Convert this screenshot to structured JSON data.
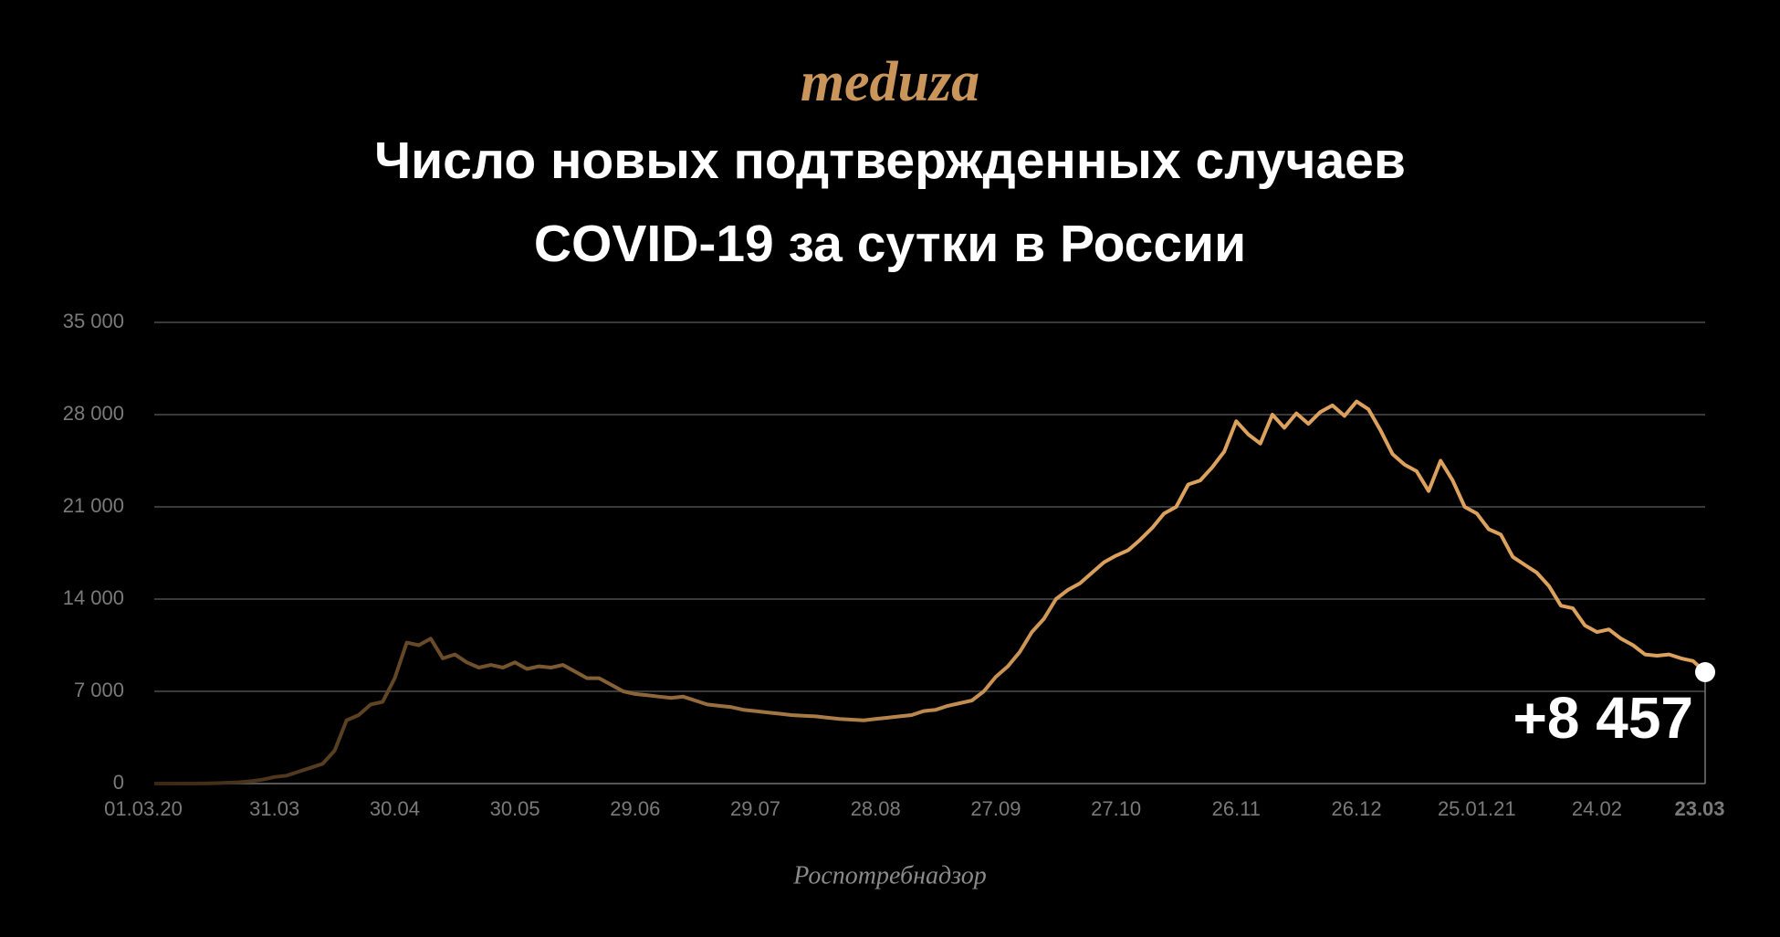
{
  "logo": "meduza",
  "chart_data": {
    "type": "line",
    "title": "Число новых подтвержденных случаев COVID-19 за сутки в России",
    "source": "Роспотребнадзор",
    "categories": [
      "01.03.20",
      null,
      null,
      null,
      null,
      null,
      null,
      null,
      null,
      null,
      "31.03",
      null,
      null,
      null,
      null,
      null,
      null,
      null,
      null,
      null,
      "30.04",
      null,
      null,
      null,
      null,
      null,
      null,
      null,
      null,
      null,
      "30.05",
      null,
      null,
      null,
      null,
      null,
      null,
      null,
      null,
      null,
      "29.06",
      null,
      null,
      null,
      null,
      null,
      null,
      null,
      null,
      null,
      "29.07",
      null,
      null,
      null,
      null,
      null,
      null,
      null,
      null,
      null,
      "28.08",
      null,
      null,
      null,
      null,
      null,
      null,
      null,
      null,
      null,
      "27.09",
      null,
      null,
      null,
      null,
      null,
      null,
      null,
      null,
      null,
      "27.10",
      null,
      null,
      null,
      null,
      null,
      null,
      null,
      null,
      null,
      "26.11",
      null,
      null,
      null,
      null,
      null,
      null,
      null,
      null,
      null,
      "26.12",
      null,
      null,
      null,
      null,
      null,
      null,
      null,
      null,
      null,
      "25.01.21",
      null,
      null,
      null,
      null,
      null,
      null,
      null,
      null,
      null,
      "24.02",
      null,
      null,
      null,
      null,
      null,
      null,
      null,
      null,
      "23.03"
    ],
    "values": [
      0,
      0,
      2,
      3,
      10,
      30,
      60,
      100,
      170,
      300,
      500,
      600,
      900,
      1200,
      1500,
      2500,
      4800,
      5200,
      6000,
      6200,
      8000,
      10700,
      10500,
      11000,
      9500,
      9800,
      9200,
      8800,
      9000,
      8800,
      9200,
      8700,
      8900,
      8800,
      9000,
      8500,
      8000,
      8000,
      7500,
      7000,
      6800,
      6700,
      6600,
      6500,
      6600,
      6300,
      6000,
      5900,
      5800,
      5600,
      5500,
      5400,
      5300,
      5200,
      5150,
      5100,
      5000,
      4900,
      4850,
      4800,
      4900,
      5000,
      5100,
      5200,
      5500,
      5600,
      5900,
      6100,
      6300,
      7000,
      8100,
      8900,
      10000,
      11500,
      12500,
      14000,
      14700,
      15200,
      16000,
      16800,
      17300,
      17700,
      18500,
      19400,
      20500,
      21000,
      22700,
      23000,
      24000,
      25200,
      27500,
      26500,
      25800,
      28000,
      27000,
      28100,
      27300,
      28200,
      28700,
      27900,
      29000,
      28400,
      26800,
      25000,
      24200,
      23700,
      22200,
      24500,
      23000,
      21000,
      20500,
      19300,
      18900,
      17200,
      16600,
      16000,
      15000,
      13500,
      13300,
      12000,
      11500,
      11700,
      11000,
      10500,
      9800,
      9700,
      9800,
      9500,
      9300,
      8457
    ],
    "value_labels": [
      null,
      null,
      null,
      null,
      null,
      null,
      null,
      null,
      null,
      null,
      null,
      null,
      null,
      null,
      null,
      null,
      null,
      null,
      null,
      null,
      null,
      null,
      null,
      null,
      null,
      null,
      null,
      null,
      null,
      null,
      null,
      null,
      null,
      null,
      null,
      null,
      null,
      null,
      null,
      null,
      null,
      null,
      null,
      null,
      null,
      null,
      null,
      null,
      null,
      null,
      null,
      null,
      null,
      null,
      null,
      null,
      null,
      null,
      null,
      null,
      null,
      null,
      null,
      null,
      null,
      null,
      null,
      null,
      null,
      null,
      null,
      null,
      null,
      null,
      null,
      null,
      null,
      null,
      null,
      null,
      null,
      null,
      null,
      null,
      null,
      null,
      null,
      null,
      null,
      null,
      null,
      null,
      null,
      null,
      null,
      null,
      null,
      null,
      null,
      null,
      null,
      null,
      null,
      null,
      null,
      null,
      null,
      null,
      null,
      null,
      null,
      null,
      null,
      null,
      null,
      null,
      null,
      null,
      null,
      null,
      null,
      null,
      null,
      null,
      null,
      null,
      null,
      null,
      null,
      "+8 457"
    ],
    "color": "#dca15d",
    "gradient_start_color": "#3a2814",
    "ylim": [
      0,
      35000
    ],
    "yticks": [
      0,
      {
        "value": 7000,
        "label": "7 000"
      },
      {
        "value": 14000,
        "label": "14 000"
      },
      {
        "value": 21000,
        "label": "21 000"
      },
      {
        "value": 28000,
        "label": "28 000"
      },
      {
        "value": 35000,
        "label": "35 000"
      }
    ],
    "grid": true
  }
}
